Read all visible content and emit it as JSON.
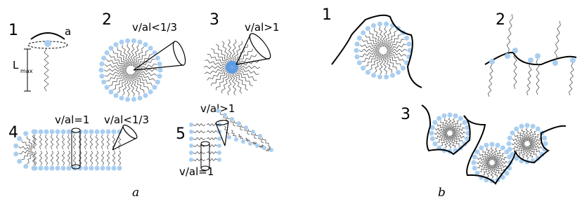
{
  "panel_a": {
    "caption": "a",
    "sub": [
      {
        "number": "1",
        "notes": [
          "a",
          "L",
          "max"
        ]
      },
      {
        "number": "2",
        "notes": [
          "v/al<1/3"
        ]
      },
      {
        "number": "3",
        "notes": [
          "v/al>1"
        ]
      },
      {
        "number": "4",
        "notes": [
          "v/al=1",
          "v/al<1/3"
        ]
      },
      {
        "number": "5",
        "notes": [
          "v/al>1",
          "v/al=1"
        ]
      }
    ]
  },
  "panel_b": {
    "caption": "b",
    "sub": [
      {
        "number": "1"
      },
      {
        "number": "2"
      },
      {
        "number": "3"
      }
    ]
  }
}
